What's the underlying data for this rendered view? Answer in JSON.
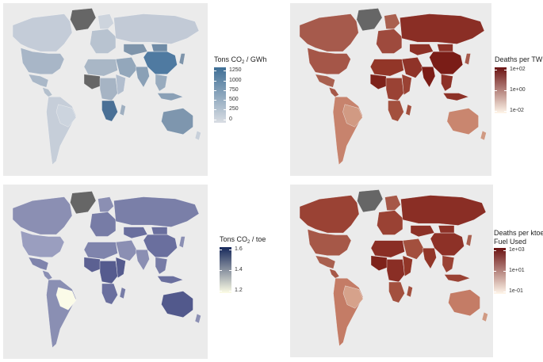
{
  "panels": [
    {
      "id": "co2-per-gwh",
      "legend_title_main": "Tons CO",
      "legend_title_sub": "2",
      "legend_title_rest": " / GWh",
      "legend_title_line2": "",
      "scale": "linear",
      "low_color": "#d9dde3",
      "high_color": "#3f6f96",
      "ticks": [
        "1250",
        "1000",
        "750",
        "500",
        "250",
        "0"
      ],
      "countries": {
        "greenland": "#666666",
        "canada": "#c4ccd8",
        "usa": "#a8b6c7",
        "mexico": "#aab8c8",
        "central_america": "#b4c0cd",
        "south_america": "#c6ced9",
        "brazil": "#ccd4de",
        "europe": "#b8c3d0",
        "scandinavia": "#cdd4dd",
        "russia": "#c2cad6",
        "kazakhstan": "#7f95ab",
        "china": "#4f7aa1",
        "mongolia": "#6f8ba6",
        "india": "#8aa0b6",
        "middle_east": "#93a7bb",
        "north_africa": "#a9b7c6",
        "west_africa": "#666666",
        "central_africa": "#a6b4c4",
        "east_africa": "#b2bece",
        "southern_africa": "#4a7096",
        "madagascar": "#9fafc0",
        "se_asia": "#98abbe",
        "indonesia": "#8aa0b6",
        "japan": "#7f95ab",
        "australia": "#7e96ae",
        "new_zealand": "#c8d0da"
      }
    },
    {
      "id": "deaths-per-twh",
      "legend_title_main": "Deaths per TWh",
      "legend_title_sub": "",
      "legend_title_rest": "",
      "legend_title_line2": "",
      "scale": "log",
      "low_color": "#fff6ea",
      "high_color": "#6b1212",
      "ticks": [
        "1e+02",
        "1e+00",
        "1e-02"
      ],
      "countries": {
        "greenland": "#666666",
        "canada": "#a65a4c",
        "usa": "#a55648",
        "mexico": "#a9604f",
        "central_america": "#a65848",
        "south_america": "#c7836d",
        "brazil": "#d19a83",
        "europe": "#9e4a3d",
        "scandinavia": "#a9604f",
        "russia": "#8a2e25",
        "kazakhstan": "#8d3127",
        "china": "#7a1d17",
        "mongolia": "#8d3127",
        "india": "#7b1d17",
        "middle_east": "#8f3328",
        "north_africa": "#923628",
        "west_africa": "#7e221a",
        "central_africa": "#9a4234",
        "east_africa": "#9a4234",
        "southern_africa": "#a3503e",
        "madagascar": "#a3503e",
        "se_asia": "#8d3127",
        "indonesia": "#8d3127",
        "japan": "#a65a4c",
        "australia": "#c9866f",
        "new_zealand": "#d09a83"
      }
    },
    {
      "id": "co2-per-toe",
      "legend_title_main": "Tons CO",
      "legend_title_sub": "2",
      "legend_title_rest": " / toe",
      "legend_title_line2": "",
      "scale": "linear",
      "low_color": "#fdfde6",
      "high_color": "#16285b",
      "ticks": [
        "1.6",
        "1.4",
        "1.2"
      ],
      "countries": {
        "greenland": "#666666",
        "canada": "#8b8fb3",
        "usa": "#9a9ebf",
        "mexico": "#7f84ac",
        "central_america": "#8a8fb3",
        "south_america": "#8a8fb3",
        "brazil": "#fbfbe8",
        "europe": "#777ca6",
        "scandinavia": "#8b8fb3",
        "russia": "#7a7fa8",
        "kazakhstan": "#6a6f9e",
        "china": "#6a6f9e",
        "mongolia": "#6a6f9e",
        "india": "#8b8fb3",
        "middle_east": "#8b8fb3",
        "north_africa": "#7f84ac",
        "west_africa": "#5c6192",
        "central_africa": "#555b8e",
        "east_africa": "#555b8e",
        "southern_africa": "#6a6f9e",
        "madagascar": "#777ca6",
        "se_asia": "#777ca6",
        "indonesia": "#6a6f9e",
        "japan": "#8b8fb3",
        "australia": "#52598c",
        "new_zealand": "#8b8fb3"
      }
    },
    {
      "id": "deaths-per-ktoe",
      "legend_title_main": "Deaths per ktoe",
      "legend_title_sub": "",
      "legend_title_rest": "",
      "legend_title_line2": "Fuel Used",
      "scale": "log",
      "low_color": "#fff6ea",
      "high_color": "#6b1212",
      "ticks": [
        "1e+03",
        "1e+01",
        "1e-01"
      ],
      "countries": {
        "greenland": "#666666",
        "canada": "#9a4234",
        "usa": "#a65848",
        "mexico": "#a9604f",
        "central_america": "#a65848",
        "south_america": "#c47c66",
        "brazil": "#d6a28b",
        "europe": "#9a4234",
        "scandinavia": "#a65848",
        "russia": "#8a2e25",
        "kazakhstan": "#8d3127",
        "china": "#8d3127",
        "mongolia": "#8d3127",
        "india": "#923628",
        "middle_east": "#a3503e",
        "north_africa": "#8a2e25",
        "west_africa": "#7e221a",
        "central_africa": "#8a2e25",
        "east_africa": "#923628",
        "southern_africa": "#a3503e",
        "madagascar": "#a3503e",
        "se_asia": "#9a4234",
        "indonesia": "#9a4234",
        "japan": "#a9604f",
        "australia": "#c47c66",
        "new_zealand": "#d09a83"
      }
    }
  ]
}
